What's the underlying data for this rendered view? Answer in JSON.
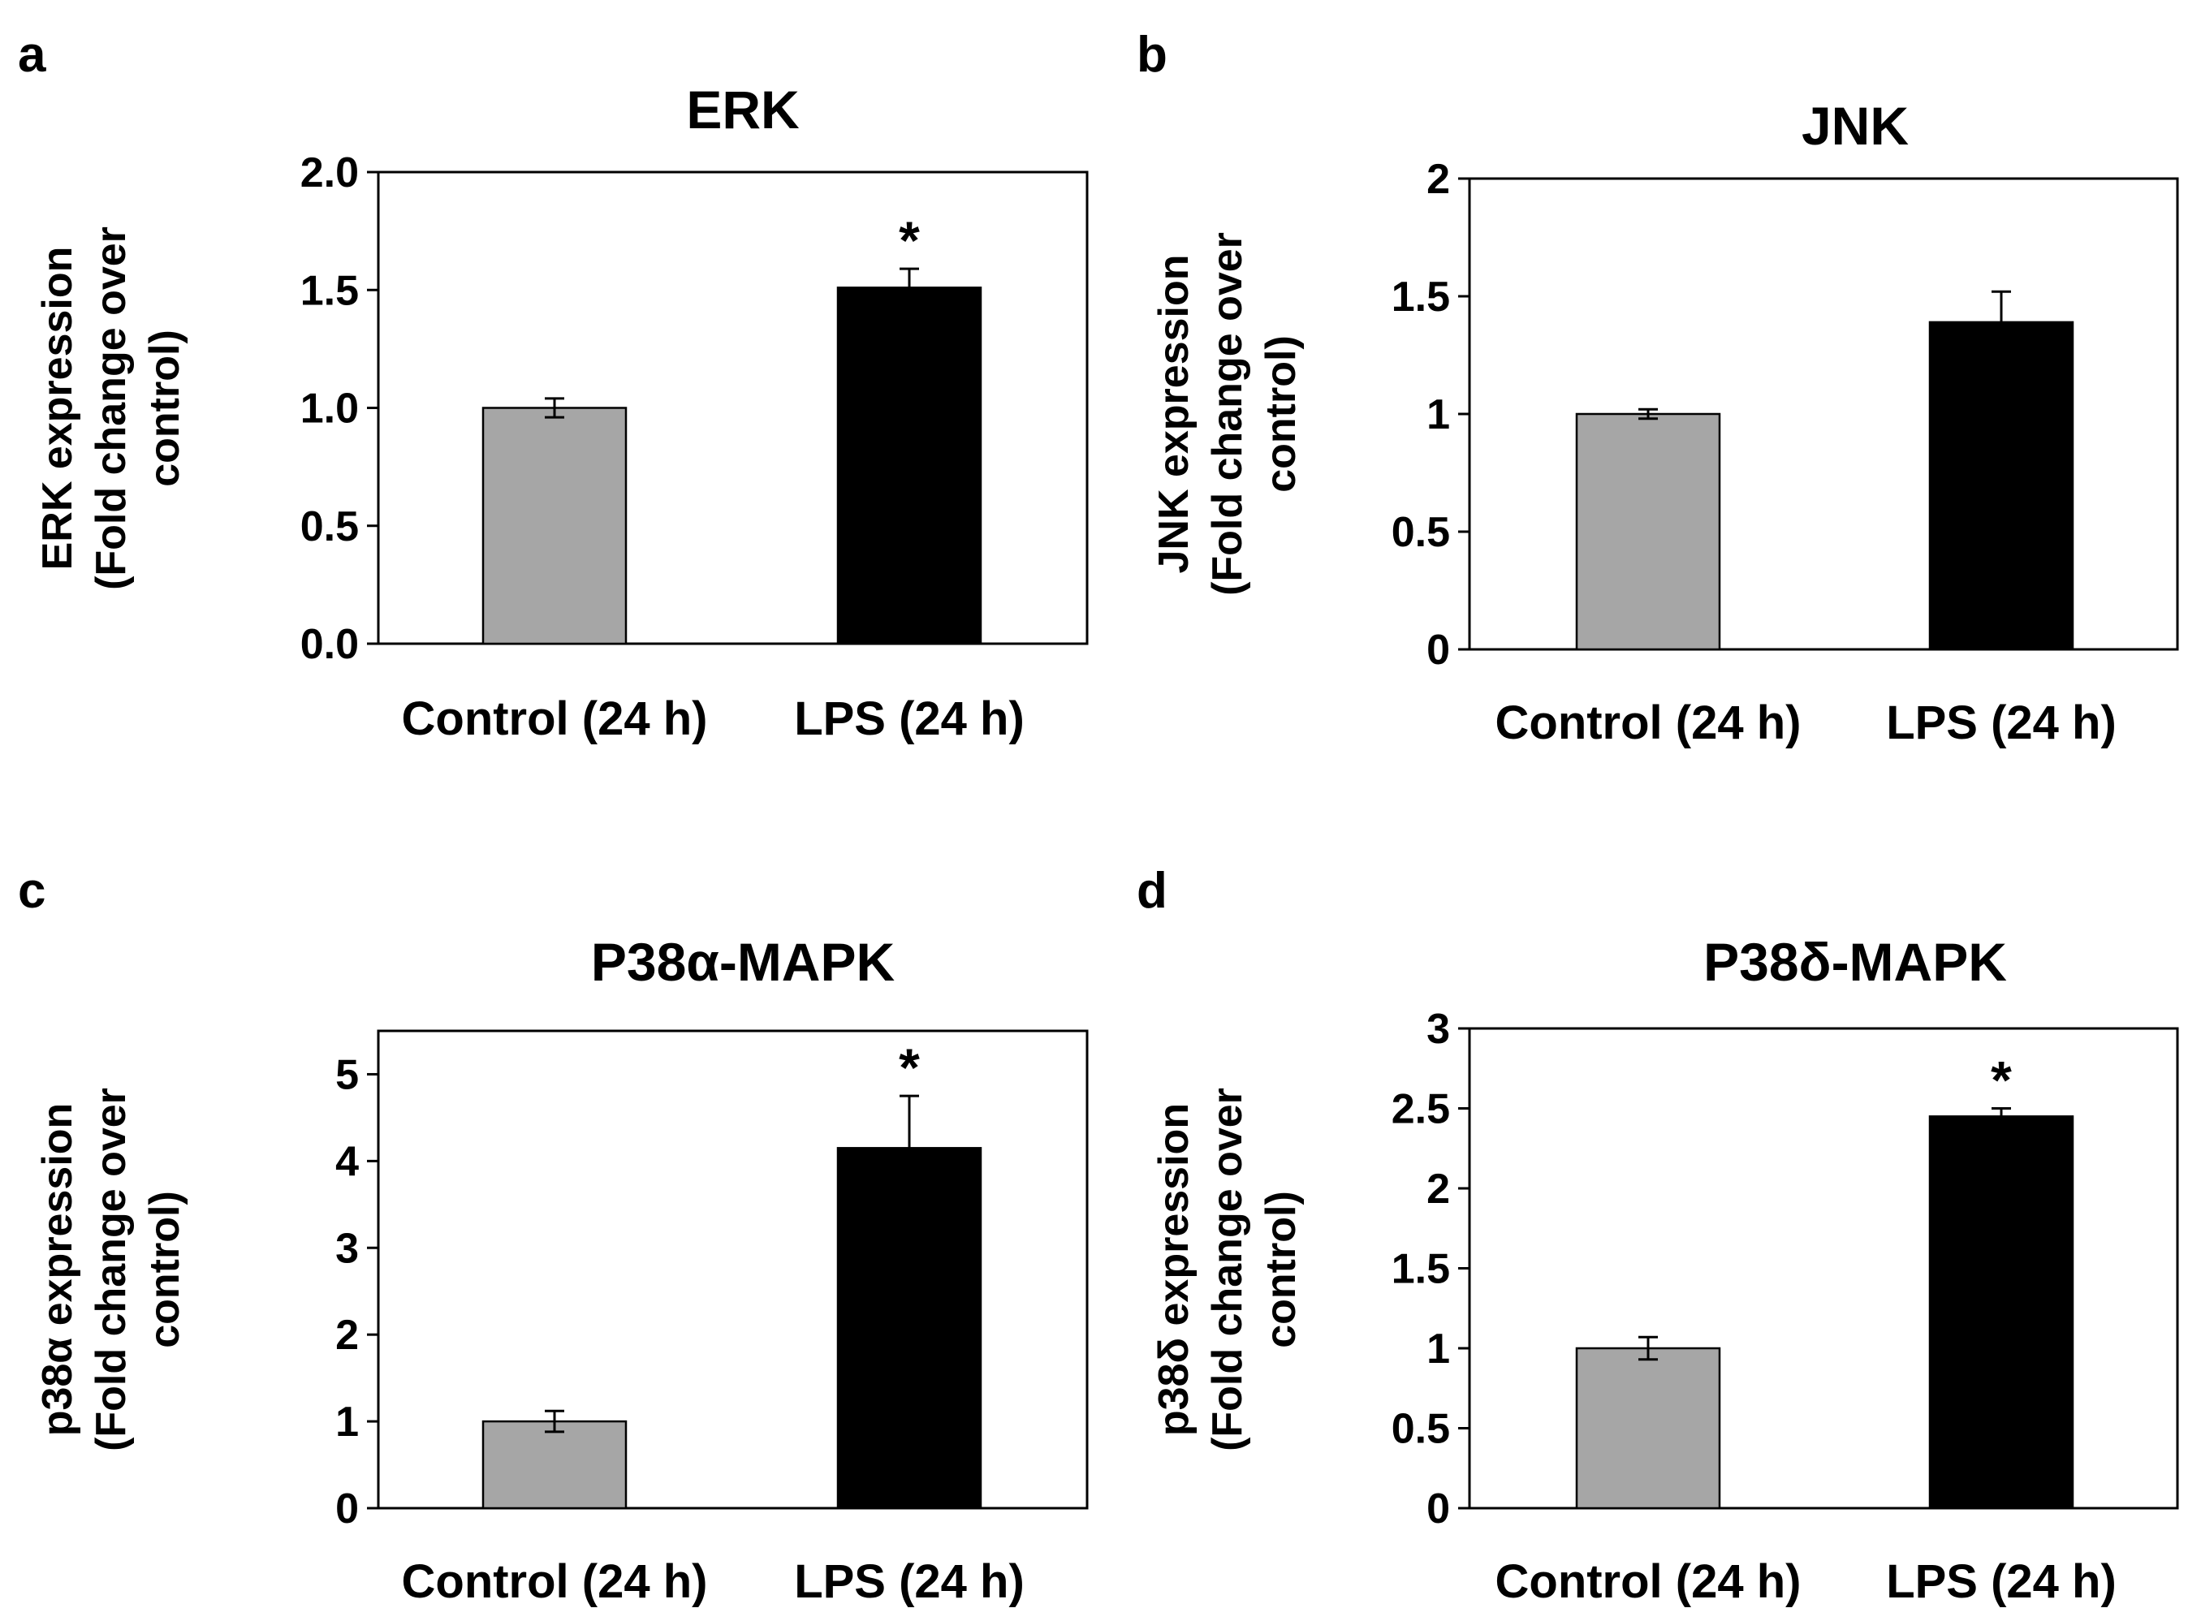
{
  "colors": {
    "control_bar": "#a6a6a6",
    "lps_bar": "#000000",
    "axis": "#000000",
    "background": "#ffffff"
  },
  "chart_data": [
    {
      "panel": "a",
      "type": "bar",
      "title": "ERK",
      "ylabel_lines": [
        "ERK expression",
        "(Fold change over",
        "control)"
      ],
      "xlabel": "",
      "categories": [
        "Control (24 h)",
        "LPS (24 h)"
      ],
      "values": [
        1.0,
        1.51
      ],
      "errors": [
        0.04,
        0.08
      ],
      "significance": [
        "",
        "*"
      ],
      "ylim": [
        0,
        2.0
      ],
      "yticks": [
        0,
        0.5,
        1.0,
        1.5,
        2.0
      ],
      "ytick_labels": [
        "0.0",
        "0.5",
        "1.0",
        "1.5",
        "2.0"
      ]
    },
    {
      "panel": "b",
      "type": "bar",
      "title": "JNK",
      "ylabel_lines": [
        "JNK expression",
        "(Fold change over",
        "control)"
      ],
      "xlabel": "",
      "categories": [
        "Control (24 h)",
        "LPS (24 h)"
      ],
      "values": [
        1.0,
        1.39
      ],
      "errors": [
        0.02,
        0.13
      ],
      "significance": [
        "",
        ""
      ],
      "ylim": [
        0,
        2
      ],
      "yticks": [
        0,
        0.5,
        1,
        1.5,
        2
      ],
      "ytick_labels": [
        "0",
        "0.5",
        "1",
        "1.5",
        "2"
      ]
    },
    {
      "panel": "c",
      "type": "bar",
      "title": "P38α-MAPK",
      "ylabel_lines": [
        "p38α expression",
        "(Fold change over",
        "control)"
      ],
      "xlabel": "",
      "categories": [
        "Control (24 h)",
        "LPS (24 h)"
      ],
      "values": [
        1.0,
        4.15
      ],
      "errors": [
        0.12,
        0.6
      ],
      "significance": [
        "",
        "*"
      ],
      "ylim": [
        0,
        5.5
      ],
      "yticks": [
        0,
        1,
        2,
        3,
        4,
        5
      ],
      "ytick_labels": [
        "0",
        "1",
        "2",
        "3",
        "4",
        "5"
      ]
    },
    {
      "panel": "d",
      "type": "bar",
      "title": "P38δ-MAPK",
      "ylabel_lines": [
        "p38δ expression",
        "(Fold change over",
        "control)"
      ],
      "xlabel": "",
      "categories": [
        "Control (24 h)",
        "LPS (24 h)"
      ],
      "values": [
        1.0,
        2.45
      ],
      "errors": [
        0.07,
        0.05
      ],
      "significance": [
        "",
        "*"
      ],
      "ylim": [
        0,
        3
      ],
      "yticks": [
        0,
        0.5,
        1,
        1.5,
        2,
        2.5,
        3
      ],
      "ytick_labels": [
        "0",
        "0.5",
        "1",
        "1.5",
        "2",
        "2.5",
        "3"
      ]
    }
  ]
}
